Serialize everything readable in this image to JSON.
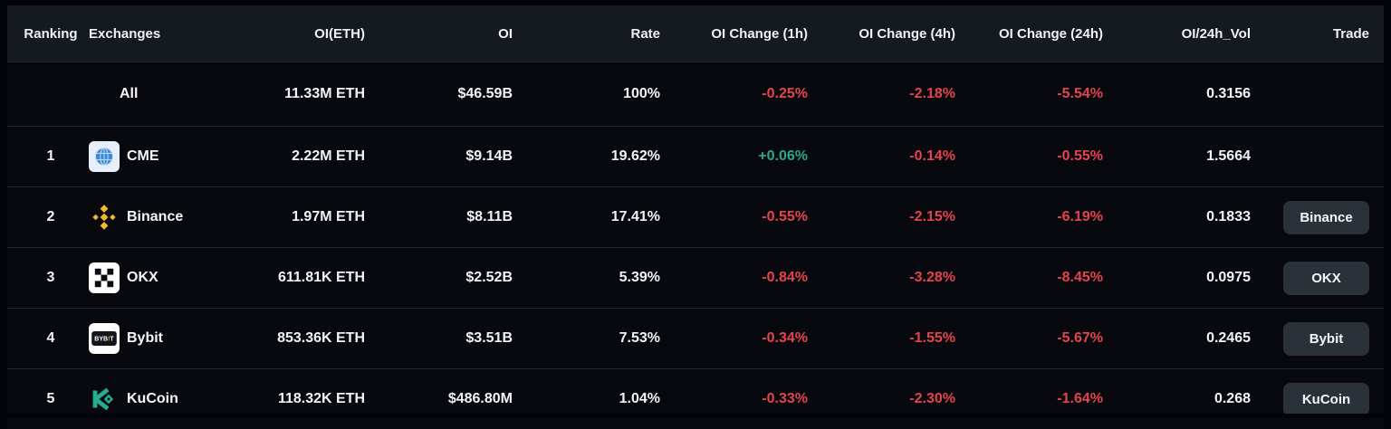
{
  "colors": {
    "header_bg": "#151a21",
    "row_bg": "#07090e",
    "divider": "#20262e",
    "header_text": "#eef0f3",
    "text": "#f1f3f6",
    "positive": "#2aa98a",
    "negative": "#e5434e",
    "button_bg": "#2b3139",
    "binance_yellow": "#f3ba2f",
    "kucoin_teal": "#24ae8f",
    "bybit_orange": "#f7a600",
    "cme_blue": "#3b87d3"
  },
  "table": {
    "header": {
      "ranking": "Ranking",
      "exchanges": "Exchanges",
      "oi_eth": "OI(ETH)",
      "oi": "OI",
      "rate": "Rate",
      "chg_1h": "OI Change (1h)",
      "chg_4h": "OI Change (4h)",
      "chg_24h": "OI Change (24h)",
      "oi_24h_vol": "OI/24h_Vol",
      "trade": "Trade"
    },
    "rows": [
      {
        "ranking": "",
        "name": "All",
        "icon": null,
        "oi_eth": "11.33M ETH",
        "oi": "$46.59B",
        "rate": "100%",
        "chg_1h": "-0.25%",
        "chg_4h": "-2.18%",
        "chg_24h": "-5.54%",
        "oi_24h_vol": "0.3156",
        "trade": null
      },
      {
        "ranking": "1",
        "name": "CME",
        "icon": "cme-globe-icon",
        "oi_eth": "2.22M ETH",
        "oi": "$9.14B",
        "rate": "19.62%",
        "chg_1h": "+0.06%",
        "chg_4h": "-0.14%",
        "chg_24h": "-0.55%",
        "oi_24h_vol": "1.5664",
        "trade": null
      },
      {
        "ranking": "2",
        "name": "Binance",
        "icon": "binance-diamond-icon",
        "oi_eth": "1.97M ETH",
        "oi": "$8.11B",
        "rate": "17.41%",
        "chg_1h": "-0.55%",
        "chg_4h": "-2.15%",
        "chg_24h": "-6.19%",
        "oi_24h_vol": "0.1833",
        "trade": "Binance"
      },
      {
        "ranking": "3",
        "name": "OKX",
        "icon": "okx-grid-icon",
        "oi_eth": "611.81K ETH",
        "oi": "$2.52B",
        "rate": "5.39%",
        "chg_1h": "-0.84%",
        "chg_4h": "-3.28%",
        "chg_24h": "-8.45%",
        "oi_24h_vol": "0.0975",
        "trade": "OKX"
      },
      {
        "ranking": "4",
        "name": "Bybit",
        "icon": "bybit-wordmark-icon",
        "oi_eth": "853.36K ETH",
        "oi": "$3.51B",
        "rate": "7.53%",
        "chg_1h": "-0.34%",
        "chg_4h": "-1.55%",
        "chg_24h": "-5.67%",
        "oi_24h_vol": "0.2465",
        "trade": "Bybit"
      },
      {
        "ranking": "5",
        "name": "KuCoin",
        "icon": "kucoin-k-icon",
        "oi_eth": "118.32K ETH",
        "oi": "$486.80M",
        "rate": "1.04%",
        "chg_1h": "-0.33%",
        "chg_4h": "-2.30%",
        "chg_24h": "-1.64%",
        "oi_24h_vol": "0.268",
        "trade": "KuCoin"
      }
    ]
  }
}
